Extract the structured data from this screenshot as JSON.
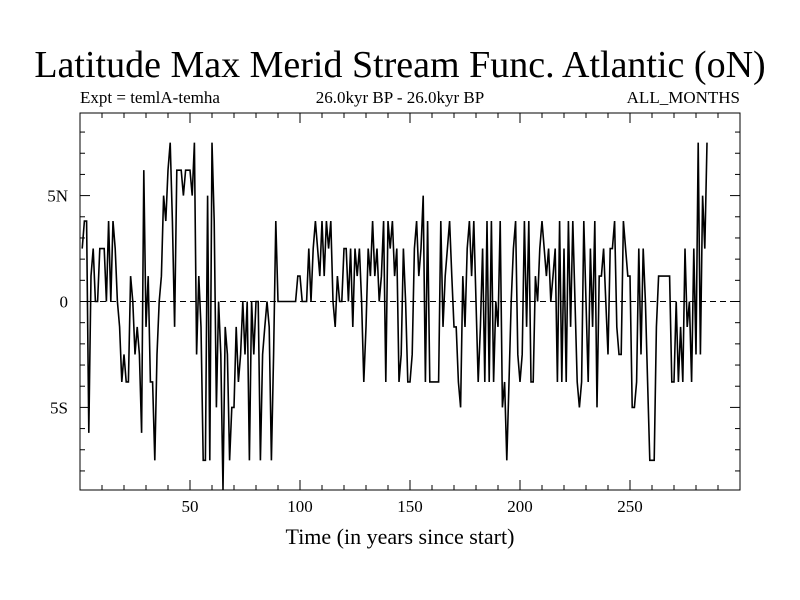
{
  "chart_data": {
    "type": "line",
    "title": "Latitude Max Merid Stream Func. Atlantic (oN)",
    "subtitle_left": "Expt = temlA-temha",
    "subtitle_center": "26.0kyr BP - 26.0kyr BP",
    "subtitle_right": "ALL_MONTHS",
    "xlabel": "Time (in years since start)",
    "ylabel": "",
    "xlim": [
      0,
      300
    ],
    "ylim": [
      -8.9,
      8.9
    ],
    "x_ticks": [
      50,
      100,
      150,
      200,
      250
    ],
    "y_ticks": [
      {
        "value": 5,
        "label": "5N"
      },
      {
        "value": 0,
        "label": "0"
      },
      {
        "value": -5,
        "label": "5S"
      }
    ],
    "zero_line": "dashed",
    "x_start": 1,
    "x_step": 1,
    "series": [
      {
        "name": "Latitude Max Merid Stream Func",
        "values": [
          2.5,
          3.8,
          3.8,
          -6.2,
          1.2,
          2.5,
          0,
          0,
          2.5,
          2.5,
          2.5,
          0,
          3.8,
          0,
          3.8,
          2.5,
          0,
          -1.2,
          -3.8,
          -2.5,
          -3.8,
          -3.8,
          1.2,
          0,
          -2.5,
          -1.2,
          -2.5,
          -6.2,
          6.2,
          -1.2,
          1.2,
          -3.8,
          -3.8,
          -7.5,
          -2.5,
          0,
          1.2,
          5,
          3.8,
          6.2,
          7.5,
          3.8,
          -1.2,
          6.2,
          6.2,
          6.2,
          5,
          6.2,
          6.2,
          6.2,
          5,
          7.5,
          -2.5,
          1.2,
          -1.2,
          -7.5,
          -7.5,
          5,
          -7.5,
          7.5,
          3.8,
          -5,
          0,
          -2.5,
          -8.9,
          -1.2,
          -2.5,
          -7.5,
          -5,
          -5,
          -1.2,
          -3.8,
          -2.5,
          0,
          -2.5,
          0,
          -7.5,
          0,
          -2.5,
          0,
          0,
          -7.5,
          -2.5,
          -1.2,
          0,
          -1.2,
          -7.5,
          -2.5,
          3.8,
          0,
          0,
          0,
          0,
          0,
          0,
          0,
          0,
          0,
          1.2,
          1.2,
          0,
          0,
          0,
          2.5,
          0,
          2.5,
          3.8,
          2.5,
          1.2,
          3.8,
          1.2,
          3.8,
          2.5,
          3.8,
          0,
          -1.2,
          1.2,
          0,
          0,
          2.5,
          2.5,
          0,
          2.5,
          -1.2,
          2.5,
          1.2,
          2.5,
          0,
          -3.8,
          -1.2,
          2.5,
          1.2,
          3.8,
          1.2,
          2.5,
          0,
          1.2,
          3.8,
          -3.8,
          3.8,
          2.5,
          3.8,
          1.2,
          2.5,
          -3.8,
          -2.5,
          2.5,
          0,
          -3.8,
          -3.8,
          -2.5,
          2.5,
          3.8,
          1.2,
          2.5,
          5,
          -3.8,
          3.8,
          -3.8,
          -3.8,
          -3.8,
          -3.8,
          -3.8,
          3.8,
          -1.2,
          1.2,
          2.5,
          3.8,
          1.2,
          -1.2,
          -1.2,
          -3.8,
          -5,
          1.2,
          -1.2,
          2.5,
          3.8,
          1.2,
          3.8,
          0,
          -3.8,
          -1.2,
          2.5,
          -3.8,
          3.8,
          -3.8,
          3.8,
          -3.8,
          0,
          -1.2,
          3.8,
          -5,
          -3.8,
          -7.5,
          -3.8,
          0,
          2.5,
          3.8,
          -2.5,
          -3.8,
          -2.5,
          3.8,
          -1.2,
          3.8,
          -3.8,
          -3.8,
          1.2,
          0,
          2.5,
          3.8,
          2.5,
          1.2,
          2.5,
          0,
          1.2,
          2.5,
          -3.8,
          3.8,
          -3.8,
          2.5,
          -3.8,
          3.8,
          -1.2,
          3.8,
          0,
          -3.8,
          -5,
          -3.8,
          3.8,
          0,
          -3.8,
          2.5,
          -1.2,
          3.8,
          -5,
          1.2,
          1.2,
          2.5,
          0,
          -2.5,
          2.5,
          2.5,
          3.8,
          -1.2,
          -2.5,
          -2.5,
          3.8,
          2.5,
          1.2,
          1.2,
          -5,
          -5,
          -3.8,
          2.5,
          -2.5,
          2.5,
          0,
          -3.8,
          -7.5,
          -7.5,
          -7.5,
          -1.2,
          1.2,
          1.2,
          1.2,
          1.2,
          1.2,
          1.2,
          -3.8,
          -3.8,
          0,
          -3.8,
          -1.2,
          -3.8,
          2.5,
          -1.2,
          0,
          -3.8,
          2.5,
          -2.5,
          7.5,
          -2.5,
          5,
          2.5,
          7.5
        ]
      }
    ]
  }
}
